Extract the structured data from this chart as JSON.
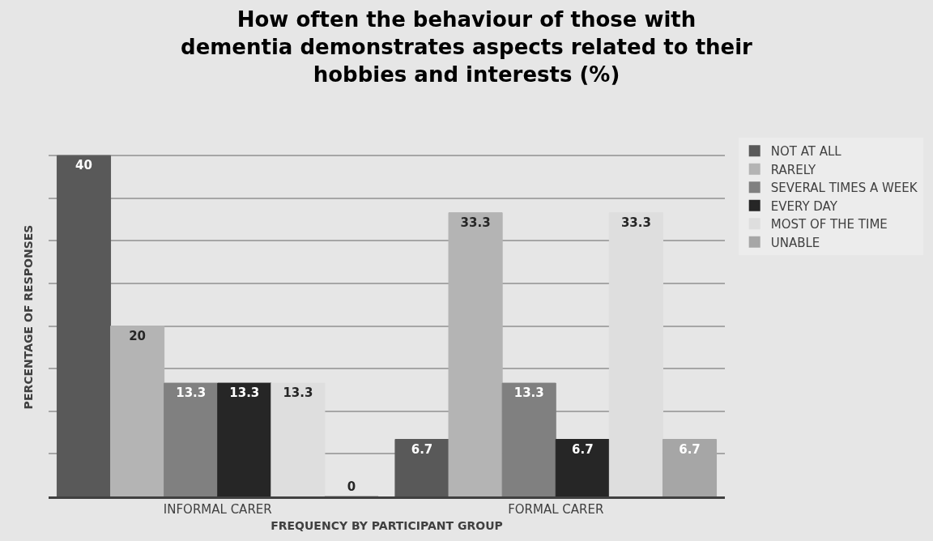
{
  "chart_data": {
    "type": "bar",
    "title": "How often the behaviour of those with dementia demonstrates aspects related to their hobbies and interests (%)",
    "xlabel": "FREQUENCY BY PARTICIPANT GROUP",
    "ylabel": "PERCENTAGE OF RESPONSES",
    "categories": [
      "INFORMAL CARER",
      "FORMAL CARER"
    ],
    "series": [
      {
        "name": "NOT AT ALL",
        "color": "#595959",
        "values": [
          40,
          6.7
        ]
      },
      {
        "name": "RARELY",
        "color": "#b4b4b4",
        "values": [
          20,
          33.3
        ]
      },
      {
        "name": "SEVERAL TIMES A WEEK",
        "color": "#808080",
        "values": [
          13.3,
          13.3
        ]
      },
      {
        "name": "EVERY DAY",
        "color": "#262626",
        "values": [
          13.3,
          6.7
        ]
      },
      {
        "name": "MOST OF THE TIME",
        "color": "#dedede",
        "values": [
          13.3,
          33.3
        ]
      },
      {
        "name": "UNABLE",
        "color": "#a6a6a6",
        "values": [
          0,
          6.7
        ]
      }
    ],
    "tick_labels": "x",
    "grid": "y",
    "legend": "right",
    "data_labels": true
  }
}
